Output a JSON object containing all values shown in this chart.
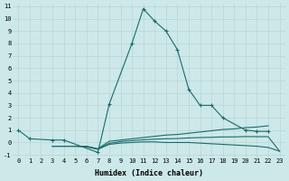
{
  "xlabel": "Humidex (Indice chaleur)",
  "xlim": [
    -0.5,
    23.5
  ],
  "ylim": [
    -1.2,
    11.2
  ],
  "xticks": [
    0,
    1,
    2,
    3,
    4,
    5,
    6,
    7,
    8,
    9,
    10,
    11,
    12,
    13,
    14,
    15,
    16,
    17,
    18,
    19,
    20,
    21,
    22,
    23
  ],
  "yticks": [
    -1,
    0,
    1,
    2,
    3,
    4,
    5,
    6,
    7,
    8,
    9,
    10,
    11
  ],
  "bg_color": "#cce8e8",
  "line_color": "#1a6b6b",
  "grid_color": "#b8d4d4",
  "series": [
    {
      "x": [
        0,
        1,
        3,
        4,
        7,
        8,
        10,
        11,
        12,
        13,
        14,
        15,
        16,
        17,
        18,
        20,
        21,
        22
      ],
      "y": [
        1.0,
        0.3,
        0.2,
        0.2,
        -0.8,
        3.1,
        8.0,
        10.8,
        9.8,
        9.0,
        7.5,
        4.3,
        3.0,
        3.0,
        2.0,
        1.0,
        0.9,
        0.9
      ],
      "marker": "+"
    },
    {
      "x": [
        3,
        4,
        5,
        6,
        7,
        8,
        9,
        10,
        11,
        12,
        13,
        14,
        15,
        16,
        17,
        18,
        19,
        20,
        21,
        22
      ],
      "y": [
        -0.3,
        -0.3,
        -0.3,
        -0.3,
        -0.5,
        0.1,
        0.2,
        0.3,
        0.4,
        0.5,
        0.6,
        0.65,
        0.75,
        0.85,
        0.95,
        1.05,
        1.1,
        1.2,
        1.25,
        1.35
      ],
      "marker": null
    },
    {
      "x": [
        3,
        4,
        5,
        6,
        7,
        8,
        9,
        10,
        11,
        12,
        13,
        14,
        15,
        16,
        17,
        18,
        19,
        20,
        21,
        22,
        23
      ],
      "y": [
        -0.3,
        -0.3,
        -0.3,
        -0.35,
        -0.55,
        -0.15,
        -0.05,
        0.0,
        0.05,
        0.05,
        0.0,
        0.0,
        -0.0,
        -0.05,
        -0.1,
        -0.15,
        -0.2,
        -0.25,
        -0.3,
        -0.4,
        -0.7
      ],
      "marker": null
    },
    {
      "x": [
        3,
        4,
        5,
        6,
        7,
        8,
        9,
        10,
        11,
        12,
        13,
        14,
        15,
        16,
        17,
        18,
        19,
        20,
        21,
        22,
        23
      ],
      "y": [
        -0.3,
        -0.3,
        -0.3,
        -0.32,
        -0.53,
        -0.07,
        0.08,
        0.15,
        0.22,
        0.27,
        0.3,
        0.32,
        0.37,
        0.4,
        0.42,
        0.45,
        0.45,
        0.48,
        0.47,
        0.47,
        -0.7
      ],
      "marker": null
    }
  ]
}
